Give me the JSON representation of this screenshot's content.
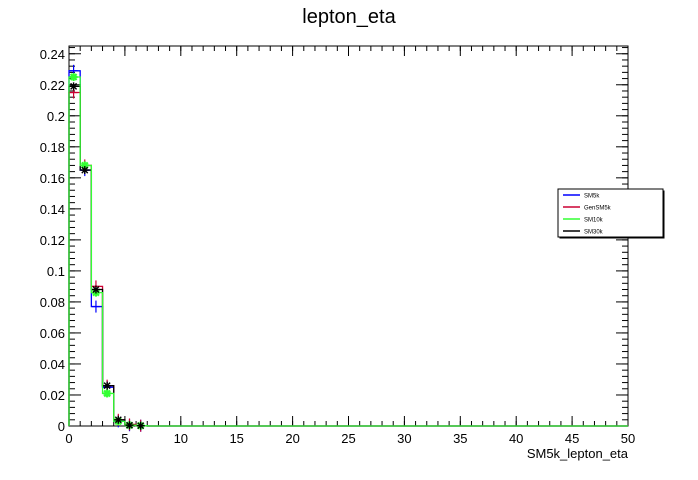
{
  "chart_data": {
    "type": "line",
    "title": "lepton_eta",
    "xlabel": "SM5k_lepton_eta",
    "ylabel": "",
    "xlim": [
      0,
      50
    ],
    "ylim": [
      0,
      0.245
    ],
    "xticks": [
      0,
      5,
      10,
      15,
      20,
      25,
      30,
      35,
      40,
      45,
      50
    ],
    "yticks": [
      0,
      0.02,
      0.04,
      0.06,
      0.08,
      0.1,
      0.12,
      0.14,
      0.16,
      0.18,
      0.2,
      0.22,
      0.24
    ],
    "bin_edges": [
      0,
      1,
      2,
      3,
      4,
      5,
      6,
      7,
      8,
      9,
      10,
      11,
      12,
      13,
      14,
      15,
      16,
      17,
      18,
      19,
      20,
      21,
      22,
      23,
      24,
      25,
      26,
      27,
      28,
      29,
      30,
      31,
      32,
      33,
      34,
      35,
      36,
      37,
      38,
      39,
      40,
      41,
      42,
      43,
      44,
      45,
      46,
      47,
      48,
      49,
      50
    ],
    "legend_position": "right",
    "series": [
      {
        "name": "SM5k",
        "color": "#0000ff",
        "marker": "plus",
        "values": [
          0.229,
          0.165,
          0.077,
          0.025,
          0.003,
          0.0005,
          0.0002
        ]
      },
      {
        "name": "GenSM5k",
        "color": "#cc0033",
        "marker": "plus",
        "values": [
          0.215,
          0.168,
          0.09,
          0.026,
          0.004,
          0.001,
          0.0002
        ]
      },
      {
        "name": "SM10k",
        "color": "#33ff33",
        "marker": "star",
        "values": [
          0.225,
          0.168,
          0.086,
          0.021,
          0.003,
          0.0005,
          0.0002
        ]
      },
      {
        "name": "SM30k",
        "color": "#000000",
        "marker": "star",
        "values": [
          0.219,
          0.165,
          0.088,
          0.026,
          0.004,
          0.0005,
          0.0002
        ]
      }
    ]
  }
}
